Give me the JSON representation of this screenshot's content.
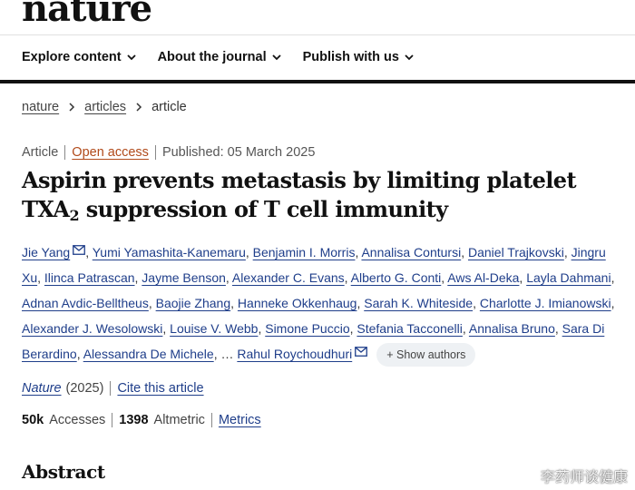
{
  "site": {
    "logo": "nature"
  },
  "nav": {
    "items": [
      {
        "label": "Explore content"
      },
      {
        "label": "About the journal"
      },
      {
        "label": "Publish with us"
      }
    ]
  },
  "breadcrumb": [
    "nature",
    "articles",
    "article"
  ],
  "meta": {
    "type": "Article",
    "access": "Open access",
    "published": "Published: 05 March 2025"
  },
  "title": {
    "part1": "Aspirin prevents metastasis by limiting platelet TXA",
    "subscript": "2",
    "part2": "suppression of T cell immunity"
  },
  "authors": [
    "Jie Yang",
    "Yumi Yamashita-Kanemaru",
    "Benjamin I. Morris",
    "Annalisa Contursi",
    "Daniel Trajkovski",
    "Jingru Xu",
    "Ilinca Patrascan",
    "Jayme Benson",
    "Alexander C. Evans",
    "Alberto G. Conti",
    "Aws Al-Deka",
    "Layla Dahmani",
    "Adnan Avdic-Belltheus",
    "Baojie Zhang",
    "Hanneke Okkenhaug",
    "Sarah K. Whiteside",
    "Charlotte J. Imianowski",
    "Alexander J. Wesolowski",
    "Louise V. Webb",
    "Simone Puccio",
    "Stefania Tacconelli",
    "Annalisa Bruno",
    "Sara Di Berardino",
    "Alessandra De Michele",
    "Rahul Roychoudhuri"
  ],
  "show_authors": "+ Show authors",
  "ellipsis": "…",
  "citation": {
    "journal": "Nature",
    "year": "(2025)",
    "cite_label": "Cite this article"
  },
  "metrics": {
    "accesses_value": "50k",
    "accesses_label": "Accesses",
    "altmetric_value": "1398",
    "altmetric_label": "Altmetric",
    "metrics_link": "Metrics"
  },
  "abstract_heading": "Abstract",
  "watermark": "李药师谈健康",
  "colors": {
    "link": "#1f3e8a",
    "open_access": "#b14a1a",
    "bar": "#111111"
  }
}
